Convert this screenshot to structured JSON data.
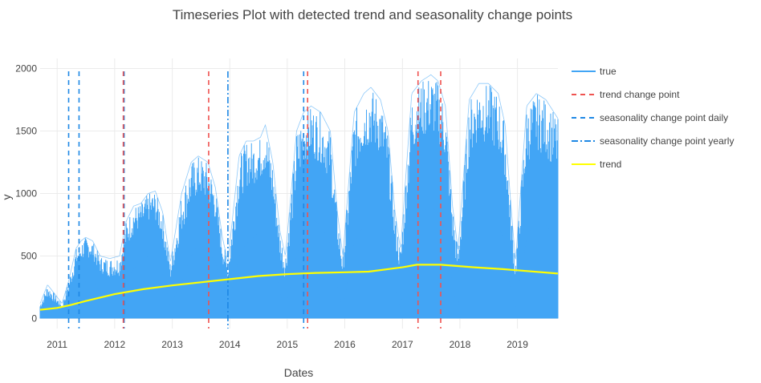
{
  "chart_data": {
    "type": "line",
    "title": "Timeseries Plot with detected trend and seasonality change points",
    "xlabel": "Dates",
    "ylabel": "y",
    "x_range": [
      "2010-09-15",
      "2019-09-15"
    ],
    "ylim": [
      -80,
      2080
    ],
    "x_ticks": [
      "2011",
      "2012",
      "2013",
      "2014",
      "2015",
      "2016",
      "2017",
      "2018",
      "2019"
    ],
    "y_ticks": [
      0,
      500,
      1000,
      1500,
      2000
    ],
    "grid": true,
    "legend_position": "right",
    "colors": {
      "true": "#42a5f5",
      "trend_change_point": "#ef5350",
      "seasonality_daily": "#1e88e5",
      "seasonality_yearly": "#1e88e5",
      "trend": "#ffff00"
    },
    "series": [
      {
        "name": "true",
        "style": "solid",
        "envelope": {
          "x": [
            "2010-09-15",
            "2010-11-01",
            "2010-12-15",
            "2011-02-01",
            "2011-03-15",
            "2011-05-01",
            "2011-06-01",
            "2011-07-01",
            "2011-08-15",
            "2011-10-01",
            "2011-12-01",
            "2012-02-01",
            "2012-03-15",
            "2012-05-01",
            "2012-06-15",
            "2012-08-01",
            "2012-09-15",
            "2012-11-01",
            "2012-12-20",
            "2013-03-01",
            "2013-05-01",
            "2013-06-15",
            "2013-08-15",
            "2013-10-01",
            "2013-11-15",
            "2013-12-20",
            "2014-03-01",
            "2014-04-15",
            "2014-06-01",
            "2014-07-15",
            "2014-08-15",
            "2014-10-01",
            "2014-11-15",
            "2014-12-20",
            "2015-03-01",
            "2015-04-15",
            "2015-06-01",
            "2015-08-01",
            "2015-10-01",
            "2015-11-15",
            "2015-12-20",
            "2016-03-01",
            "2016-05-01",
            "2016-06-15",
            "2016-08-15",
            "2016-10-01",
            "2016-11-15",
            "2016-12-20",
            "2017-03-01",
            "2017-05-01",
            "2017-07-01",
            "2017-08-15",
            "2017-10-01",
            "2017-11-15",
            "2017-12-20",
            "2018-03-01",
            "2018-05-01",
            "2018-07-01",
            "2018-09-01",
            "2018-10-15",
            "2018-11-15",
            "2018-12-20",
            "2019-03-01",
            "2019-05-01",
            "2019-07-01",
            "2019-09-15"
          ],
          "max": [
            120,
            270,
            200,
            120,
            300,
            560,
            620,
            650,
            620,
            500,
            480,
            500,
            780,
            900,
            920,
            1000,
            1020,
            850,
            450,
            1000,
            1250,
            1300,
            1250,
            1050,
            650,
            450,
            1300,
            1420,
            1420,
            1450,
            1550,
            1250,
            700,
            500,
            1500,
            1650,
            1700,
            1650,
            1500,
            850,
            500,
            1650,
            1800,
            1850,
            1750,
            1500,
            850,
            550,
            1800,
            1900,
            1950,
            1900,
            1700,
            900,
            550,
            1750,
            1880,
            1880,
            1800,
            1550,
            1000,
            450,
            1700,
            1800,
            1750,
            1600
          ],
          "min": [
            20,
            50,
            40,
            20,
            80,
            200,
            250,
            300,
            300,
            200,
            150,
            150,
            300,
            400,
            450,
            500,
            500,
            350,
            100,
            300,
            500,
            600,
            550,
            450,
            200,
            80,
            500,
            600,
            650,
            700,
            700,
            500,
            200,
            80,
            500,
            700,
            800,
            750,
            600,
            250,
            80,
            600,
            750,
            800,
            750,
            600,
            250,
            80,
            700,
            850,
            900,
            850,
            700,
            250,
            80,
            700,
            850,
            800,
            750,
            600,
            250,
            80,
            650,
            800,
            750,
            600
          ]
        }
      },
      {
        "name": "trend",
        "style": "solid",
        "x": [
          "2010-09-15",
          "2011-01-01",
          "2011-04-01",
          "2011-07-01",
          "2012-01-01",
          "2012-07-01",
          "2013-01-01",
          "2013-07-01",
          "2014-01-01",
          "2014-07-01",
          "2015-01-01",
          "2015-07-01",
          "2016-01-01",
          "2016-06-01",
          "2017-01-01",
          "2017-04-01",
          "2017-09-01",
          "2018-04-01",
          "2018-10-01",
          "2019-09-15"
        ],
        "y": [
          70,
          85,
          110,
          140,
          195,
          235,
          265,
          290,
          315,
          340,
          355,
          365,
          370,
          375,
          410,
          430,
          430,
          410,
          395,
          360
        ]
      }
    ],
    "trend_change_points": {
      "name": "trend change point",
      "style": "dash",
      "x": [
        "2012-02-25",
        "2013-08-20",
        "2015-05-10",
        "2017-04-10",
        "2017-09-01"
      ]
    },
    "seasonality_change_points_daily": {
      "name": "seasonality change point daily",
      "style": "dash",
      "x": [
        "2011-03-15",
        "2011-05-20",
        "2012-03-01",
        "2015-04-15"
      ]
    },
    "seasonality_change_points_yearly": {
      "name": "seasonality change point yearly",
      "style": "dashdot",
      "x": [
        "2013-12-20"
      ]
    },
    "legend": [
      {
        "label": "true",
        "style": "solid",
        "color": "#42a5f5"
      },
      {
        "label": "trend change point",
        "style": "dash",
        "color": "#ef5350"
      },
      {
        "label": "seasonality change point daily",
        "style": "dash",
        "color": "#1e88e5"
      },
      {
        "label": "seasonality change point yearly",
        "style": "dashdot",
        "color": "#1e88e5"
      },
      {
        "label": "trend",
        "style": "solid",
        "color": "#ffff00"
      }
    ]
  }
}
